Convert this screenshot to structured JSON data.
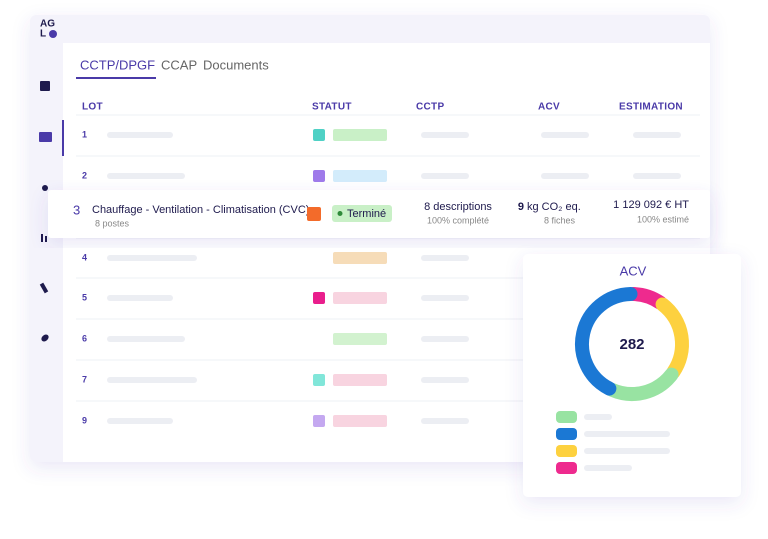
{
  "logo": {
    "line1": "AG",
    "line2": "L"
  },
  "tabs": [
    "CCTP/DPGF",
    "CCAP",
    "Documents"
  ],
  "table": {
    "headers": [
      "LOT",
      "STATUT",
      "CCTP",
      "ACV",
      "ESTIMATION"
    ],
    "rows": [
      "1",
      "2",
      "4",
      "5",
      "6",
      "7",
      "9"
    ],
    "highlight": {
      "lot": "3",
      "name": "Chauffage - Ventilation - Climatisation (CVC)",
      "sub": "8 postes",
      "status": "Terminé",
      "cctp": "8 descriptions",
      "cctp_sub": "100% complété",
      "acv_value": "9",
      "acv_unit": "kg CO₂ eq.",
      "acv_sub": "8 fiches",
      "estimation": "1 129 092 € HT",
      "estimation_sub": "100% estimé"
    }
  },
  "chart_data": {
    "type": "donut",
    "title": "ACV",
    "center_label": 282,
    "values": [
      10,
      25,
      22,
      43
    ],
    "colors": [
      "#ee2a8e",
      "#fdd13f",
      "#98e3a2",
      "#1b78d4"
    ]
  }
}
